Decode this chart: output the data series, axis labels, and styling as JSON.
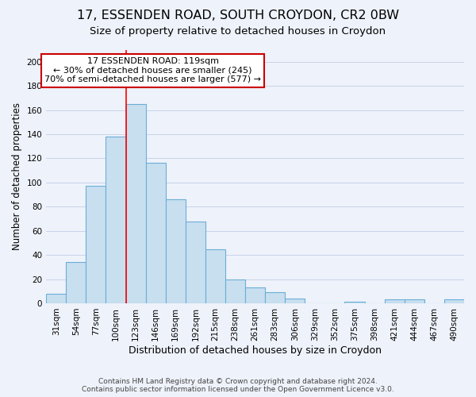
{
  "title": "17, ESSENDEN ROAD, SOUTH CROYDON, CR2 0BW",
  "subtitle": "Size of property relative to detached houses in Croydon",
  "xlabel": "Distribution of detached houses by size in Croydon",
  "ylabel": "Number of detached properties",
  "footer_line1": "Contains HM Land Registry data © Crown copyright and database right 2024.",
  "footer_line2": "Contains public sector information licensed under the Open Government Licence v3.0.",
  "bar_labels": [
    "31sqm",
    "54sqm",
    "77sqm",
    "100sqm",
    "123sqm",
    "146sqm",
    "169sqm",
    "192sqm",
    "215sqm",
    "238sqm",
    "261sqm",
    "283sqm",
    "306sqm",
    "329sqm",
    "352sqm",
    "375sqm",
    "398sqm",
    "421sqm",
    "444sqm",
    "467sqm",
    "490sqm"
  ],
  "bar_values": [
    8,
    34,
    97,
    138,
    165,
    116,
    86,
    68,
    45,
    20,
    13,
    9,
    4,
    0,
    0,
    1,
    0,
    3,
    3,
    0,
    3
  ],
  "bar_fill_color": "#c8dff0",
  "bar_edge_color": "#6baed6",
  "redline_x": 3.5,
  "ylim": [
    0,
    210
  ],
  "yticks": [
    0,
    20,
    40,
    60,
    80,
    100,
    120,
    140,
    160,
    180,
    200
  ],
  "annotation_text": "17 ESSENDEN ROAD: 119sqm\n← 30% of detached houses are smaller (245)\n70% of semi-detached houses are larger (577) →",
  "annotation_box_color": "#ffffff",
  "annotation_box_edge": "#cc0000",
  "bg_color": "#eef2fa",
  "grid_color": "#c8d4e8",
  "title_fontsize": 11.5,
  "subtitle_fontsize": 9.5,
  "footer_fontsize": 6.5,
  "ylabel_fontsize": 8.5,
  "xlabel_fontsize": 9,
  "tick_fontsize": 7.5,
  "annot_fontsize": 8.0
}
